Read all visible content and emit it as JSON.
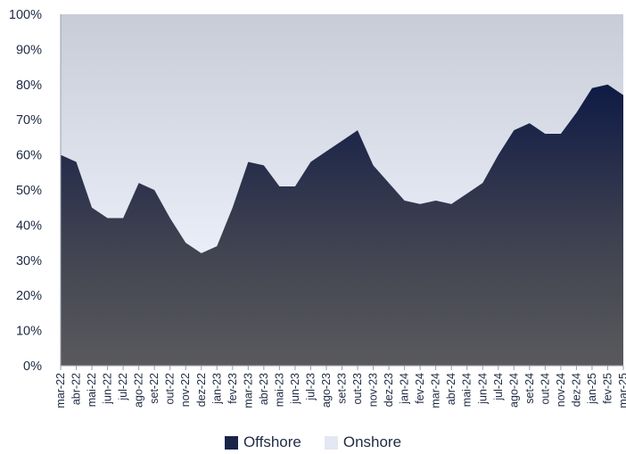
{
  "chart_data": {
    "type": "area",
    "stacked_percent": true,
    "title": "",
    "xlabel": "",
    "ylabel": "",
    "ylim": [
      0,
      100
    ],
    "y_ticks": [
      "0%",
      "10%",
      "20%",
      "30%",
      "40%",
      "50%",
      "60%",
      "70%",
      "80%",
      "90%",
      "100%"
    ],
    "x_ticks": [
      "mar-22",
      "abr-22",
      "mai-22",
      "jun-22",
      "jul-22",
      "ago-22",
      "set-22",
      "out-22",
      "nov-22",
      "dez-22",
      "jan-23",
      "fev-23",
      "mar-23",
      "abr-23",
      "mai-23",
      "jun-23",
      "jul-23",
      "ago-23",
      "set-23",
      "out-23",
      "nov-23",
      "dez-23",
      "jan-24",
      "fev-24",
      "mar-24",
      "abr-24",
      "mai-24",
      "jun-24",
      "jul-24",
      "ago-24",
      "set-24",
      "out-24",
      "nov-24",
      "dez-24",
      "jan-25",
      "fev-25",
      "mar-25"
    ],
    "grid": false,
    "legend_position": "bottom",
    "x": [
      "mar-22",
      "abr-22",
      "mai-22",
      "jun-22",
      "jul-22",
      "ago-22",
      "set-22",
      "out-22",
      "nov-22",
      "dez-22",
      "jan-23",
      "fev-23",
      "mar-23",
      "abr-23",
      "mai-23",
      "jun-23",
      "jul-23",
      "ago-23",
      "set-23",
      "out-23",
      "nov-23",
      "dez-23",
      "jan-24",
      "fev-24",
      "mar-24",
      "abr-24",
      "mai-24",
      "jun-24",
      "jul-24",
      "ago-24",
      "set-24",
      "out-24",
      "nov-24",
      "dez-24",
      "jan-25",
      "fev-25",
      "mar-25"
    ],
    "series": [
      {
        "name": "Offshore",
        "color_top": "#0f1b45",
        "color_bottom": "#5a5a5c",
        "values": [
          60,
          58,
          45,
          42,
          42,
          52,
          50,
          42,
          35,
          32,
          34,
          45,
          58,
          57,
          51,
          51,
          58,
          61,
          64,
          67,
          57,
          52,
          47,
          46,
          47,
          46,
          49,
          52,
          60,
          67,
          69,
          66,
          66,
          72,
          79,
          80,
          77
        ]
      },
      {
        "name": "Onshore",
        "color_top": "#c8ccd6",
        "color_bottom": "#e9eef9",
        "values": [
          40,
          42,
          55,
          58,
          58,
          48,
          50,
          58,
          65,
          68,
          66,
          55,
          42,
          43,
          49,
          49,
          42,
          39,
          36,
          33,
          43,
          48,
          53,
          54,
          53,
          54,
          51,
          48,
          40,
          33,
          31,
          34,
          34,
          28,
          21,
          20,
          23
        ]
      }
    ]
  },
  "legend": {
    "items": [
      {
        "label": "Offshore",
        "color": "#1a2447"
      },
      {
        "label": "Onshore",
        "color": "#e2e7f1"
      }
    ]
  }
}
